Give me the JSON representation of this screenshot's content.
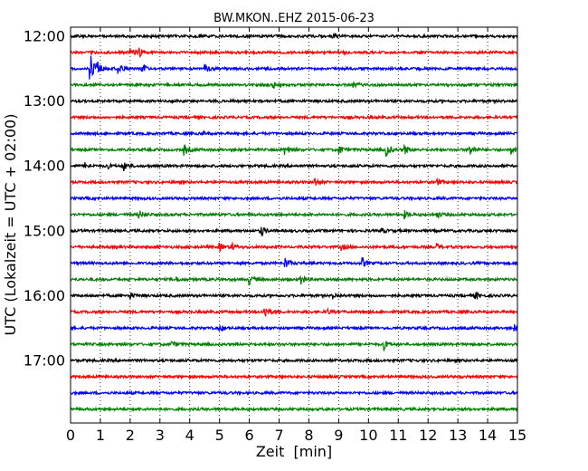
{
  "chart_data": {
    "type": "line",
    "title": "BW.MKON..EHZ 2015-06-23",
    "xlabel": "Zeit  [min]",
    "ylabel": "UTC (Lokalzeit = UTC + 02:00)",
    "xlim": [
      0,
      15
    ],
    "xticks": [
      "0",
      "1",
      "2",
      "3",
      "4",
      "5",
      "6",
      "7",
      "8",
      "9",
      "10",
      "11",
      "12",
      "13",
      "14",
      "15"
    ],
    "yticks": [
      {
        "label": "12:00",
        "row": 0
      },
      {
        "label": "13:00",
        "row": 4
      },
      {
        "label": "14:00",
        "row": 8
      },
      {
        "label": "15:00",
        "row": 12
      },
      {
        "label": "16:00",
        "row": 16
      },
      {
        "label": "17:00",
        "row": 20
      }
    ],
    "colors": [
      "#000000",
      "#ff0000",
      "#0000ff",
      "#008000"
    ],
    "grid": "vertical-dotted",
    "traces": [
      {
        "start": "12:00",
        "events": [
          {
            "t": 8.8,
            "a": 3
          }
        ]
      },
      {
        "start": "12:15",
        "events": [
          {
            "t": 2.0,
            "a": 4
          },
          {
            "t": 2.3,
            "a": 4
          },
          {
            "t": 9.0,
            "a": 3
          }
        ]
      },
      {
        "start": "12:30",
        "events": [
          {
            "t": 0.65,
            "a": 17
          },
          {
            "t": 0.9,
            "a": 7
          },
          {
            "t": 1.6,
            "a": 6
          },
          {
            "t": 2.4,
            "a": 4
          },
          {
            "t": 4.5,
            "a": 4
          }
        ]
      },
      {
        "start": "12:45",
        "events": [
          {
            "t": 6.8,
            "a": 3
          },
          {
            "t": 9.5,
            "a": 3
          }
        ]
      },
      {
        "start": "13:00",
        "events": []
      },
      {
        "start": "13:15",
        "events": []
      },
      {
        "start": "13:30",
        "events": [
          {
            "t": 4.4,
            "a": 2
          }
        ]
      },
      {
        "start": "13:45",
        "events": [
          {
            "t": 3.8,
            "a": 6
          },
          {
            "t": 7.2,
            "a": 6
          },
          {
            "t": 9.0,
            "a": 5
          },
          {
            "t": 10.6,
            "a": 7
          },
          {
            "t": 11.2,
            "a": 5
          },
          {
            "t": 13.4,
            "a": 6
          },
          {
            "t": 14.8,
            "a": 4
          }
        ]
      },
      {
        "start": "14:00",
        "events": [
          {
            "t": 0.5,
            "a": 3
          },
          {
            "t": 1.2,
            "a": 3
          },
          {
            "t": 1.8,
            "a": 5
          }
        ]
      },
      {
        "start": "14:15",
        "events": [
          {
            "t": 8.2,
            "a": 4
          },
          {
            "t": 12.3,
            "a": 3
          }
        ]
      },
      {
        "start": "14:30",
        "events": []
      },
      {
        "start": "14:45",
        "events": [
          {
            "t": 2.3,
            "a": 4
          },
          {
            "t": 11.2,
            "a": 4
          },
          {
            "t": 12.3,
            "a": 3
          }
        ]
      },
      {
        "start": "15:00",
        "events": [
          {
            "t": 6.4,
            "a": 5
          },
          {
            "t": 10.4,
            "a": 3
          }
        ]
      },
      {
        "start": "15:15",
        "events": [
          {
            "t": 5.0,
            "a": 4
          },
          {
            "t": 5.4,
            "a": 4
          },
          {
            "t": 9.1,
            "a": 3
          },
          {
            "t": 12.3,
            "a": 3
          }
        ]
      },
      {
        "start": "15:30",
        "events": [
          {
            "t": 7.2,
            "a": 6
          },
          {
            "t": 9.8,
            "a": 5
          }
        ]
      },
      {
        "start": "15:45",
        "events": [
          {
            "t": 3.5,
            "a": 3
          },
          {
            "t": 6.0,
            "a": 5
          },
          {
            "t": 7.7,
            "a": 7
          }
        ]
      },
      {
        "start": "16:00",
        "events": [
          {
            "t": 2.0,
            "a": 3
          },
          {
            "t": 8.8,
            "a": 3
          },
          {
            "t": 13.6,
            "a": 3
          }
        ]
      },
      {
        "start": "16:15",
        "events": [
          {
            "t": 6.5,
            "a": 8
          },
          {
            "t": 8.6,
            "a": 3
          }
        ]
      },
      {
        "start": "16:30",
        "events": [
          {
            "t": 5.0,
            "a": 3
          },
          {
            "t": 14.9,
            "a": 3
          }
        ]
      },
      {
        "start": "16:45",
        "events": [
          {
            "t": 3.4,
            "a": 3
          },
          {
            "t": 10.5,
            "a": 6
          }
        ]
      },
      {
        "start": "17:00",
        "events": []
      },
      {
        "start": "17:15",
        "events": []
      },
      {
        "start": "17:30",
        "events": []
      },
      {
        "start": "17:45",
        "events": []
      }
    ]
  }
}
